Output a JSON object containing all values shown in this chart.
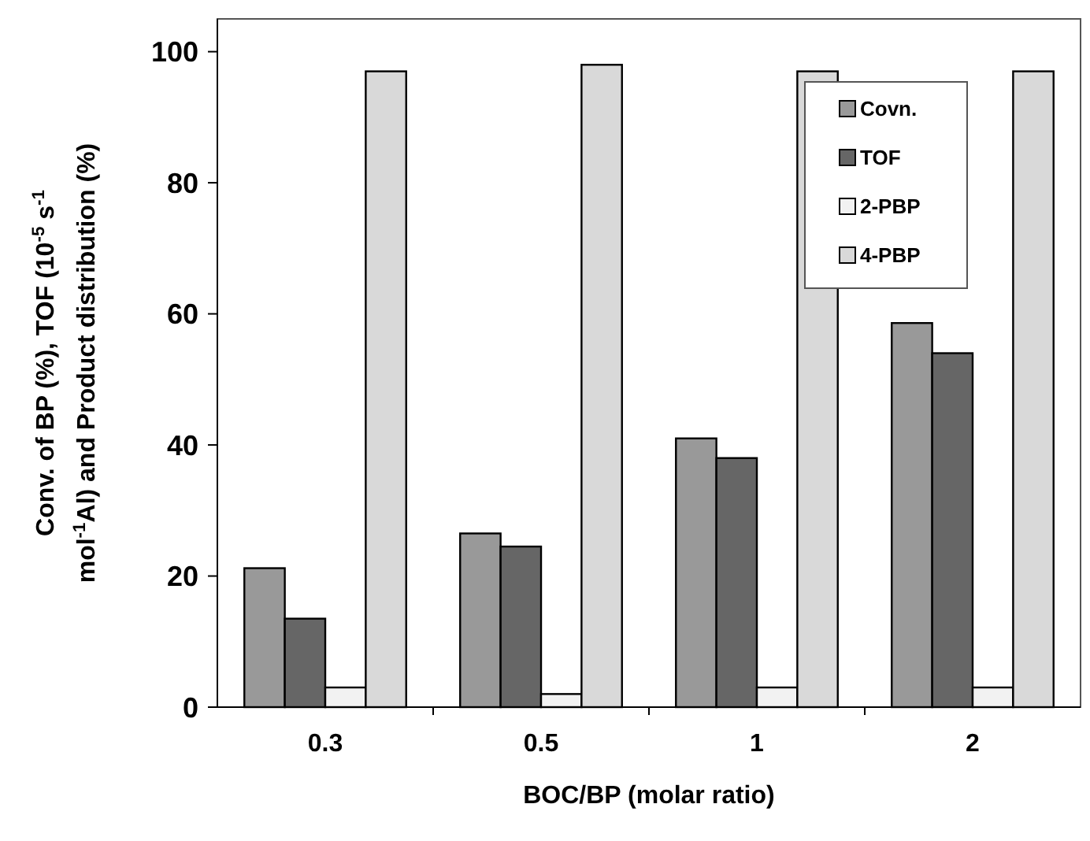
{
  "chart_data": {
    "type": "bar",
    "xlabel": "BOC/BP (molar ratio)",
    "ylabel": "Conv. of BP (%), TOF (10$^{-5}$ s$^{-1}$\nmol$^{-1}$Al) and Product distribution (%)",
    "categories": [
      "0.3",
      "0.5",
      "1",
      "2"
    ],
    "series": [
      {
        "name": "Covn.",
        "color": "#999999",
        "values": [
          21.2,
          26.5,
          41,
          58.6
        ]
      },
      {
        "name": "TOF",
        "color": "#666666",
        "values": [
          13.5,
          24.5,
          38,
          54
        ]
      },
      {
        "name": "2-PBP",
        "color": "#f2f2f2",
        "values": [
          3,
          2,
          3,
          3
        ]
      },
      {
        "name": "4-PBP",
        "color": "#d9d9d9",
        "values": [
          97,
          98,
          97,
          97
        ]
      }
    ],
    "ylim": [
      0,
      105
    ],
    "yticks": [
      0,
      20,
      40,
      60,
      80,
      100
    ],
    "grid": false,
    "legend": "top right"
  }
}
